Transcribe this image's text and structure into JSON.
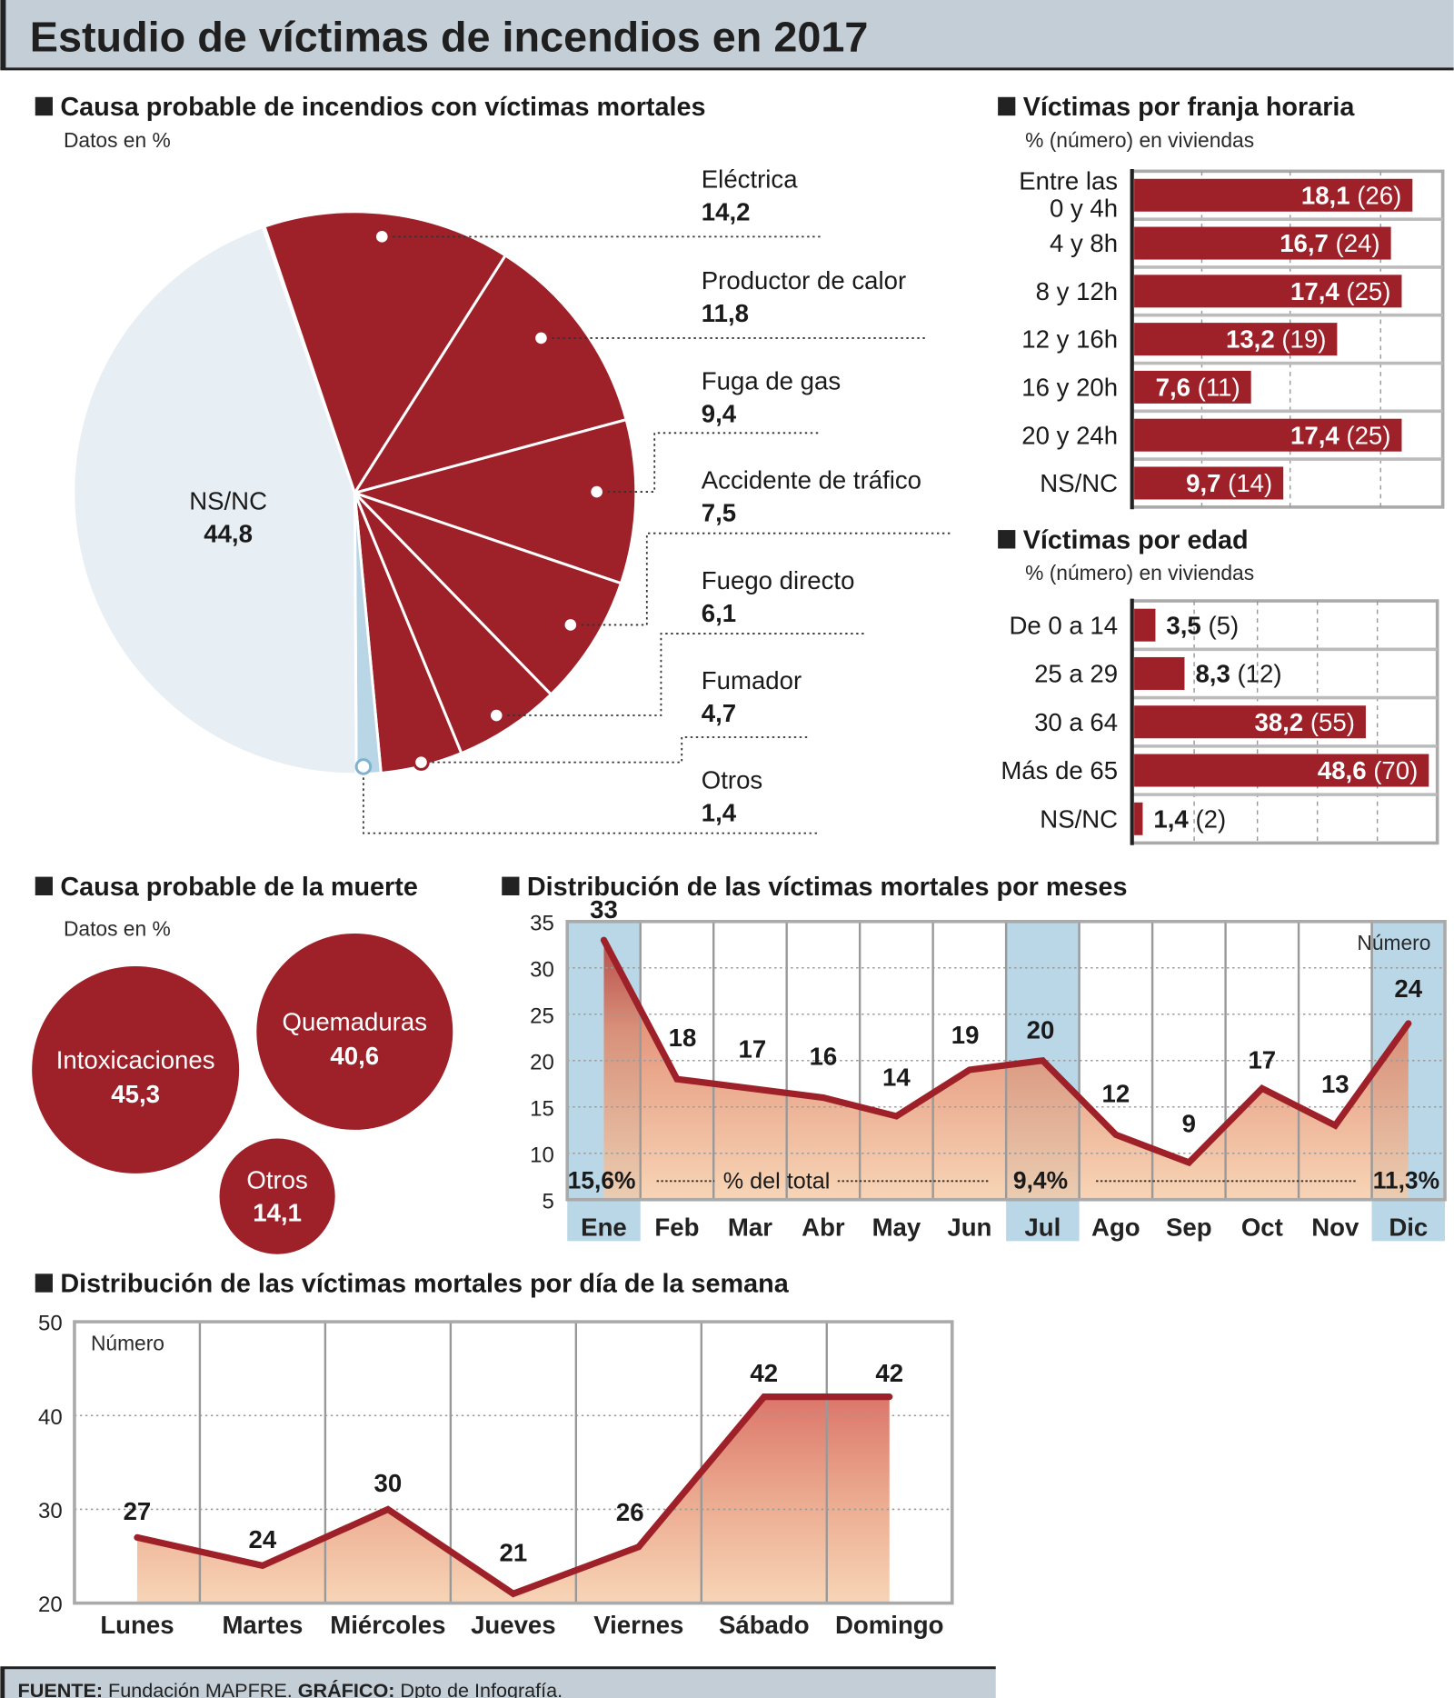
{
  "title": "Estudio de víctimas de incendios en 2017",
  "colors": {
    "red": "#9e2028",
    "light_slice": "#e8eff4",
    "otros_slice": "#b8d6e6",
    "header_bg": "#c4ced6",
    "highlight_column": "#b9d7e7"
  },
  "causa_incendio": {
    "heading": "Causa probable de incendios con víctimas mortales",
    "subtitle": "Datos en %",
    "chart_data": {
      "type": "pie",
      "slices": [
        {
          "label": "Eléctrica",
          "value": 14.2,
          "display": "14,2"
        },
        {
          "label": "Productor de calor",
          "value": 11.8,
          "display": "11,8"
        },
        {
          "label": "Fuga de gas",
          "value": 9.4,
          "display": "9,4"
        },
        {
          "label": "Accidente de tráfico",
          "value": 7.5,
          "display": "7,5"
        },
        {
          "label": "Fuego directo",
          "value": 6.1,
          "display": "6,1"
        },
        {
          "label": "Fumador",
          "value": 4.7,
          "display": "4,7"
        },
        {
          "label": "Otros",
          "value": 1.4,
          "display": "1,4"
        },
        {
          "label": "NS/NC",
          "value": 44.8,
          "display": "44,8"
        }
      ]
    }
  },
  "franja": {
    "heading": "Víctimas por franja horaria",
    "subtitle": "% (número) en viviendas",
    "chart_data": {
      "type": "bar",
      "orientation": "horizontal",
      "categories": [
        [
          "Entre las",
          "0 y 4h"
        ],
        [
          "4 y 8h"
        ],
        [
          "8 y 12h"
        ],
        [
          "12 y 16h"
        ],
        [
          "16 y 20h"
        ],
        [
          "20 y 24h"
        ],
        [
          "NS/NC"
        ]
      ],
      "values": [
        18.1,
        16.7,
        17.4,
        13.2,
        7.6,
        17.4,
        9.7
      ],
      "value_labels": [
        "18,1",
        "16,7",
        "17,4",
        "13,2",
        "7,6",
        "17,4",
        "9,7"
      ],
      "counts": [
        "(26)",
        "(24)",
        "(25)",
        "(19)",
        "(11)",
        "(25)",
        "(14)"
      ]
    }
  },
  "edad": {
    "heading": "Víctimas por edad",
    "subtitle": "% (número) en viviendas",
    "chart_data": {
      "type": "bar",
      "orientation": "horizontal",
      "categories": [
        [
          "De 0 a 14"
        ],
        [
          "25 a 29"
        ],
        [
          "30 a 64"
        ],
        [
          "Más de 65"
        ],
        [
          "NS/NC"
        ]
      ],
      "values": [
        3.5,
        8.3,
        38.2,
        48.6,
        1.4
      ],
      "value_labels": [
        "3,5",
        "8,3",
        "38,2",
        "48,6",
        "1,4"
      ],
      "counts": [
        "(5)",
        "(12)",
        "(55)",
        "(70)",
        "(2)"
      ]
    }
  },
  "muerte": {
    "heading": "Causa probable de la muerte",
    "subtitle": "Datos en %",
    "items": [
      {
        "label": "Intoxicaciones",
        "value": "45,3"
      },
      {
        "label": "Quemaduras",
        "value": "40,6"
      },
      {
        "label": "Otros",
        "value": "14,1"
      }
    ]
  },
  "meses": {
    "heading": "Distribución de las víctimas mortales por meses",
    "chart_data": {
      "type": "area",
      "categories": [
        "Ene",
        "Feb",
        "Mar",
        "Abr",
        "May",
        "Jun",
        "Jul",
        "Ago",
        "Sep",
        "Oct",
        "Nov",
        "Dic"
      ],
      "values": [
        33,
        18,
        17,
        16,
        14,
        19,
        20,
        12,
        9,
        17,
        13,
        24
      ],
      "ylim": [
        5,
        35
      ],
      "yticks": [
        5,
        10,
        15,
        20,
        25,
        30,
        35
      ],
      "unit_label": "Número",
      "highlighted": [
        "Ene",
        "Jul",
        "Dic"
      ],
      "percent_caption": "% del total",
      "percent_labels": {
        "Ene": "15,6%",
        "Jul": "9,4%",
        "Dic": "11,3%"
      },
      "grid": true
    }
  },
  "semana": {
    "heading": "Distribución de las víctimas mortales por día de la semana",
    "chart_data": {
      "type": "area",
      "categories": [
        "Lunes",
        "Martes",
        "Miércoles",
        "Jueves",
        "Viernes",
        "Sábado",
        "Domingo"
      ],
      "values": [
        27,
        24,
        30,
        21,
        26,
        42,
        42
      ],
      "ylim": [
        20,
        50
      ],
      "yticks": [
        20,
        30,
        40,
        50
      ],
      "unit_label": "Número",
      "grid": true
    }
  },
  "footer": {
    "fuente_label": "FUENTE:",
    "fuente": " Fundación MAPFRE. ",
    "grafico_label": "GRÁFICO:",
    "grafico": " Dpto de Infografía."
  }
}
